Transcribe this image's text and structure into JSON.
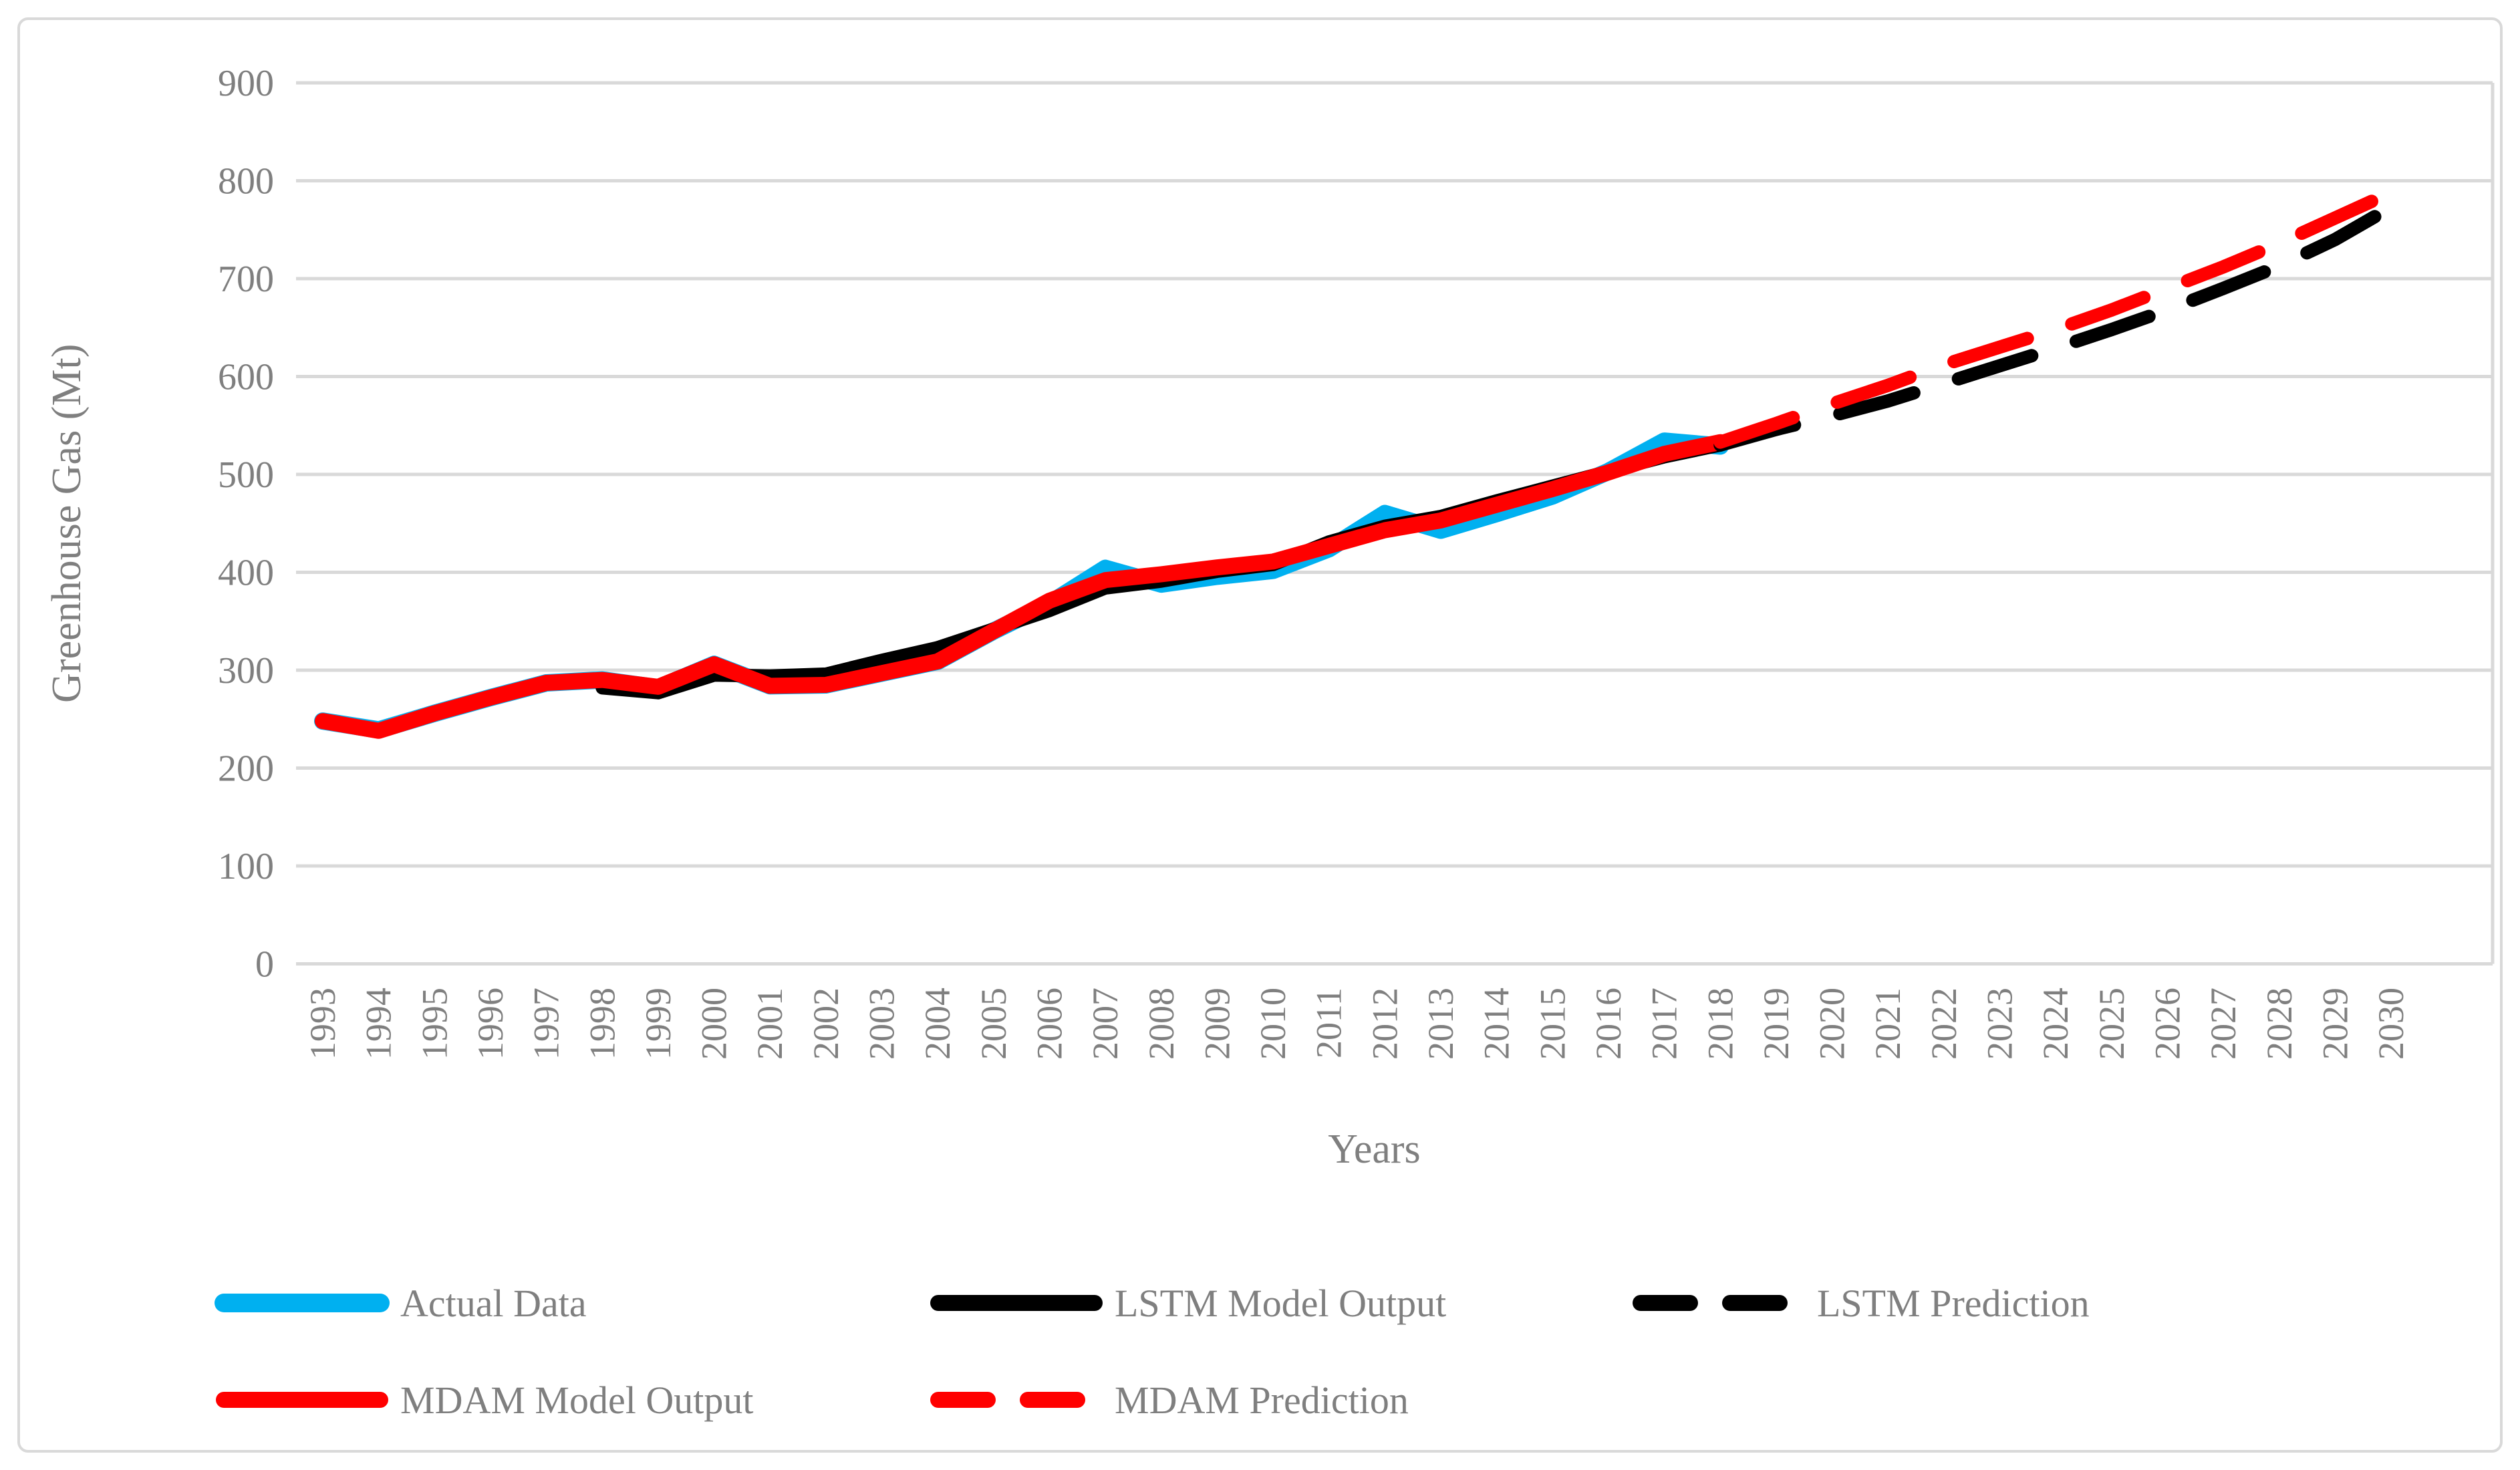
{
  "figure": {
    "background": "#FFFFFF",
    "border_color": "#D9D9D9",
    "gridline_color": "#D9D9D9",
    "text_color": "#7F7F7F"
  },
  "chart_data": {
    "type": "line",
    "title": "",
    "xlabel": "Years",
    "ylabel": "Greenhouse Gas (Mt)",
    "ylim": [
      0,
      900
    ],
    "ytick_step": 100,
    "ytick_labels": [
      "0",
      "100",
      "200",
      "300",
      "400",
      "500",
      "600",
      "700",
      "800",
      "900"
    ],
    "x_start": 1993,
    "x_end": 2030,
    "grid": true,
    "legend_position": "bottom-left",
    "series": [
      {
        "name": "Actual Data",
        "color": "#00B0F0",
        "style": "solid",
        "start_year": 1993,
        "values": [
          248,
          239,
          256,
          272,
          287,
          290,
          282,
          306,
          284,
          285,
          297,
          309,
          340,
          368,
          404,
          388,
          396,
          402,
          424,
          460,
          443,
          460,
          478,
          503,
          534,
          529
        ]
      },
      {
        "name": "LSTM Model Output",
        "color": "#000000",
        "style": "solid",
        "start_year": 1998,
        "values": [
          282,
          277,
          295,
          294,
          296,
          310,
          323,
          342,
          361,
          384,
          391,
          401,
          408,
          431,
          447,
          457,
          473,
          488,
          503,
          518,
          530
        ]
      },
      {
        "name": "MDAM Model Output",
        "color": "#FF0000",
        "style": "solid",
        "start_year": 1993,
        "values": [
          248,
          238,
          256,
          272,
          287,
          290,
          283,
          306,
          284,
          285,
          297,
          309,
          340,
          371,
          392,
          398,
          405,
          411,
          427,
          443,
          453,
          469,
          485,
          502,
          521,
          533
        ]
      },
      {
        "name": "LSTM Prediction",
        "color": "#000000",
        "style": "dashed",
        "start_year": 2018,
        "values": [
          530,
          546,
          560,
          575,
          593,
          611,
          629,
          648,
          668,
          690,
          713,
          740,
          773
        ]
      },
      {
        "name": "MDAM Prediction",
        "color": "#FF0000",
        "style": "dashed",
        "start_year": 2018,
        "values": [
          533,
          552,
          572,
          591,
          612,
          630,
          648,
          668,
          690,
          712,
          736,
          762,
          788
        ]
      }
    ],
    "legend_rows": [
      [
        "Actual Data",
        "LSTM Model Output",
        "LSTM Prediction"
      ],
      [
        "MDAM Model Output",
        "MDAM Prediction"
      ]
    ]
  }
}
